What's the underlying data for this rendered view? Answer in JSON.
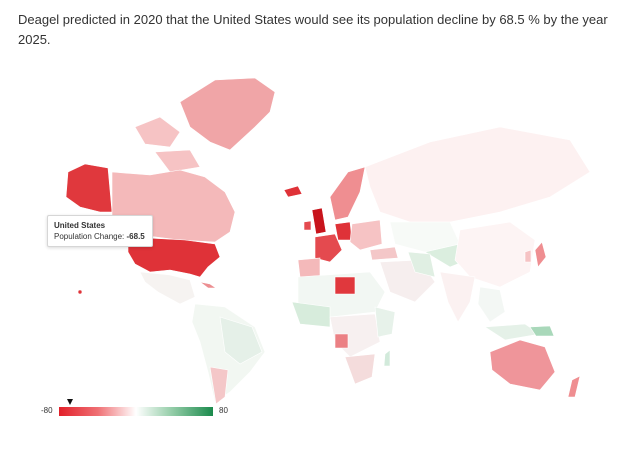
{
  "caption": "Deagel predicted in 2020 that the United States would see its population decline by 68.5 % by the year 2025.",
  "tooltip": {
    "country": "United States",
    "label": "Population Change:",
    "value": "-68.5"
  },
  "legend": {
    "min": -80,
    "max": 80,
    "min_label": "-80",
    "max_label": "80",
    "marker_value": -68.5,
    "colors": {
      "negative": "#e2202a",
      "neutral": "#ffffff",
      "positive": "#1b8a4c"
    }
  },
  "map": {
    "projection": "world",
    "highlighted_country": "United States"
  }
}
